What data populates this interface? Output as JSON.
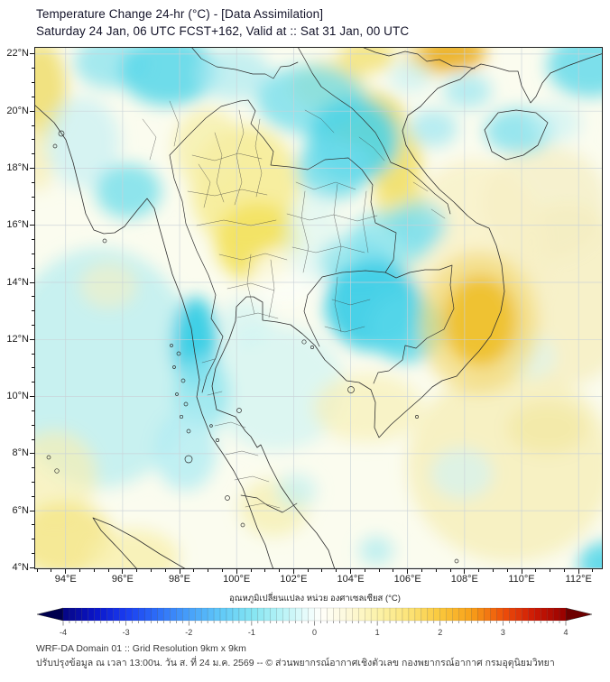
{
  "header": {
    "title_line1": "Temperature Change 24-hr (°C) - [Data Assimilation]",
    "title_line2": "Saturday 24 Jan, 06 UTC FCST+162, Valid at :: Sat 31 Jan, 00 UTC"
  },
  "map": {
    "extent": {
      "lon_min": 93,
      "lon_max": 113,
      "lat_min": 4,
      "lat_max": 22
    },
    "lon_ticks": [
      {
        "v": 94,
        "label": "94°E"
      },
      {
        "v": 96,
        "label": "96°E"
      },
      {
        "v": 98,
        "label": "98°E"
      },
      {
        "v": 100,
        "label": "100°E"
      },
      {
        "v": 102,
        "label": "102°E"
      },
      {
        "v": 104,
        "label": "104°E"
      },
      {
        "v": 106,
        "label": "106°E"
      },
      {
        "v": 108,
        "label": "108°E"
      },
      {
        "v": 110,
        "label": "110°E"
      },
      {
        "v": 112,
        "label": "112°E"
      }
    ],
    "lat_ticks": [
      {
        "v": 22,
        "label": "22°N"
      },
      {
        "v": 20,
        "label": "20°N"
      },
      {
        "v": 18,
        "label": "18°N"
      },
      {
        "v": 16,
        "label": "16°N"
      },
      {
        "v": 14,
        "label": "14°N"
      },
      {
        "v": 12,
        "label": "12°N"
      },
      {
        "v": 10,
        "label": "10°N"
      },
      {
        "v": 8,
        "label": "8°N"
      },
      {
        "v": 6,
        "label": "6°N"
      },
      {
        "v": 4,
        "label": "4°N"
      }
    ],
    "field_blobs": [
      {
        "lon": 95.2,
        "lat": 11.0,
        "rx": 3.4,
        "ry": 4.2,
        "color": "#c2eff0",
        "opacity": 0.9
      },
      {
        "lon": 101.4,
        "lat": 10.3,
        "rx": 2.4,
        "ry": 2.2,
        "color": "#d6f4f1",
        "opacity": 0.85
      },
      {
        "lon": 109.6,
        "lat": 7.6,
        "rx": 3.6,
        "ry": 3.4,
        "color": "#f6efbe",
        "opacity": 0.9
      },
      {
        "lon": 111.6,
        "lat": 13.6,
        "rx": 2.4,
        "ry": 3.2,
        "color": "#f6efc2",
        "opacity": 0.85
      },
      {
        "lon": 110.8,
        "lat": 16.8,
        "rx": 2.2,
        "ry": 2.0,
        "color": "#f4ecc0",
        "opacity": 0.7
      },
      {
        "lon": 108.3,
        "lat": 14.9,
        "rx": 2.6,
        "ry": 3.4,
        "color": "#f7f0c6",
        "opacity": 0.8
      },
      {
        "lon": 93.6,
        "lat": 7.2,
        "rx": 1.5,
        "ry": 1.6,
        "color": "#f6efb4",
        "opacity": 0.7
      },
      {
        "lon": 95.5,
        "lat": 13.9,
        "rx": 1.0,
        "ry": 0.8,
        "color": "#f7f0c0",
        "opacity": 0.6
      },
      {
        "lon": 93.15,
        "lat": 20.7,
        "rx": 0.9,
        "ry": 1.7,
        "color": "#f0e07a",
        "opacity": 0.95
      },
      {
        "lon": 93.05,
        "lat": 18.4,
        "rx": 0.55,
        "ry": 1.2,
        "color": "#f6ecb0",
        "opacity": 0.7
      },
      {
        "lon": 100.3,
        "lat": 17.3,
        "rx": 1.9,
        "ry": 2.2,
        "color": "#f6ec96",
        "opacity": 0.9
      },
      {
        "lon": 99.0,
        "lat": 18.7,
        "rx": 1.2,
        "ry": 1.4,
        "color": "#f6eda6",
        "opacity": 0.75
      },
      {
        "lon": 100.75,
        "lat": 15.4,
        "rx": 1.5,
        "ry": 1.4,
        "color": "#f2e363",
        "opacity": 0.95
      },
      {
        "lon": 103.2,
        "lat": 20.9,
        "rx": 1.3,
        "ry": 0.85,
        "color": "#f2e070",
        "opacity": 0.85
      },
      {
        "lon": 104.4,
        "lat": 19.7,
        "rx": 1.5,
        "ry": 1.0,
        "color": "#ecd84e",
        "opacity": 0.95
      },
      {
        "lon": 105.55,
        "lat": 18.2,
        "rx": 0.95,
        "ry": 1.3,
        "color": "#f0dd62",
        "opacity": 0.85
      },
      {
        "lon": 105.7,
        "lat": 16.9,
        "rx": 0.85,
        "ry": 1.2,
        "color": "#f2e274",
        "opacity": 0.8
      },
      {
        "lon": 104.6,
        "lat": 21.95,
        "rx": 1.0,
        "ry": 0.6,
        "color": "#f2e070",
        "opacity": 0.8
      },
      {
        "lon": 106.85,
        "lat": 21.85,
        "rx": 0.9,
        "ry": 0.6,
        "color": "#f0cc4a",
        "opacity": 0.8
      },
      {
        "lon": 107.6,
        "lat": 22.05,
        "rx": 1.15,
        "ry": 0.65,
        "color": "#ecb32a",
        "opacity": 0.95
      },
      {
        "lon": 93.95,
        "lat": 5.0,
        "rx": 1.7,
        "ry": 1.3,
        "color": "#f4e78c",
        "opacity": 0.9
      },
      {
        "lon": 96.4,
        "lat": 4.35,
        "rx": 1.6,
        "ry": 1.0,
        "color": "#f7efad",
        "opacity": 0.8
      },
      {
        "lon": 104.6,
        "lat": 9.6,
        "rx": 1.9,
        "ry": 1.2,
        "color": "#f7f0ba",
        "opacity": 0.75
      },
      {
        "lon": 101.3,
        "lat": 6.1,
        "rx": 1.2,
        "ry": 1.0,
        "color": "#f5eca6",
        "opacity": 0.65
      },
      {
        "lon": 110.9,
        "lat": 8.9,
        "rx": 1.4,
        "ry": 0.9,
        "color": "#f2e8a0",
        "opacity": 0.7
      },
      {
        "lon": 101.7,
        "lat": 14.2,
        "rx": 1.2,
        "ry": 1.0,
        "color": "#fdfef8",
        "opacity": 0.8
      },
      {
        "lon": 94.6,
        "lat": 18.9,
        "rx": 1.3,
        "ry": 1.6,
        "color": "#c6f0f3",
        "opacity": 0.7
      },
      {
        "lon": 95.6,
        "lat": 21.7,
        "rx": 1.3,
        "ry": 0.9,
        "color": "#8fe4ee",
        "opacity": 0.8
      },
      {
        "lon": 97.6,
        "lat": 21.4,
        "rx": 1.7,
        "ry": 1.2,
        "color": "#5ed8e9",
        "opacity": 0.9
      },
      {
        "lon": 99.9,
        "lat": 21.3,
        "rx": 1.3,
        "ry": 0.9,
        "color": "#ace9f1",
        "opacity": 0.7
      },
      {
        "lon": 102.6,
        "lat": 20.4,
        "rx": 1.9,
        "ry": 1.2,
        "color": "#7edfec",
        "opacity": 0.85
      },
      {
        "lon": 104.1,
        "lat": 19.0,
        "rx": 1.6,
        "ry": 1.5,
        "color": "#50d4e7",
        "opacity": 0.9
      },
      {
        "lon": 103.4,
        "lat": 18.0,
        "rx": 1.3,
        "ry": 1.1,
        "color": "#6cdbea",
        "opacity": 0.8
      },
      {
        "lon": 102.7,
        "lat": 15.6,
        "rx": 1.0,
        "ry": 1.6,
        "color": "#d9f5f2",
        "opacity": 0.6
      },
      {
        "lon": 105.4,
        "lat": 15.5,
        "rx": 1.5,
        "ry": 1.0,
        "color": "#8ae3ee",
        "opacity": 0.8
      },
      {
        "lon": 104.2,
        "lat": 14.7,
        "rx": 1.3,
        "ry": 0.9,
        "color": "#7edfec",
        "opacity": 0.7
      },
      {
        "lon": 104.8,
        "lat": 13.2,
        "rx": 1.7,
        "ry": 1.6,
        "color": "#3ecfe6",
        "opacity": 0.95
      },
      {
        "lon": 105.95,
        "lat": 12.4,
        "rx": 1.3,
        "ry": 1.2,
        "color": "#55d6e9",
        "opacity": 0.85
      },
      {
        "lon": 96.2,
        "lat": 17.2,
        "rx": 1.15,
        "ry": 0.95,
        "color": "#79dfeb",
        "opacity": 0.85
      },
      {
        "lon": 98.55,
        "lat": 11.9,
        "rx": 0.8,
        "ry": 1.6,
        "color": "#35cde5",
        "opacity": 0.95
      },
      {
        "lon": 98.8,
        "lat": 10.1,
        "rx": 0.95,
        "ry": 1.3,
        "color": "#8fe5ef",
        "opacity": 0.8
      },
      {
        "lon": 98.2,
        "lat": 8.1,
        "rx": 1.1,
        "ry": 1.4,
        "color": "#b2ecf2",
        "opacity": 0.8
      },
      {
        "lon": 100.3,
        "lat": 12.6,
        "rx": 0.9,
        "ry": 0.8,
        "color": "#cdf2f3",
        "opacity": 0.65
      },
      {
        "lon": 112.4,
        "lat": 21.6,
        "rx": 1.5,
        "ry": 1.1,
        "color": "#6fdcea",
        "opacity": 0.9
      },
      {
        "lon": 109.9,
        "lat": 19.3,
        "rx": 1.2,
        "ry": 0.8,
        "color": "#86e2ed",
        "opacity": 0.85
      },
      {
        "lon": 106.9,
        "lat": 19.4,
        "rx": 0.85,
        "ry": 0.65,
        "color": "#a8e9f1",
        "opacity": 0.8
      },
      {
        "lon": 106.1,
        "lat": 21.2,
        "rx": 0.75,
        "ry": 0.55,
        "color": "#c8f1f4",
        "opacity": 0.7
      },
      {
        "lon": 108.1,
        "lat": 20.7,
        "rx": 0.85,
        "ry": 0.6,
        "color": "#9fe7f0",
        "opacity": 0.75
      },
      {
        "lon": 106.35,
        "lat": 16.0,
        "rx": 1.0,
        "ry": 0.85,
        "color": "#7edfec",
        "opacity": 0.75
      },
      {
        "lon": 102.1,
        "lat": 6.7,
        "rx": 0.7,
        "ry": 0.6,
        "color": "#c2eff1",
        "opacity": 0.7
      },
      {
        "lon": 104.9,
        "lat": 4.6,
        "rx": 0.6,
        "ry": 0.5,
        "color": "#a8e9f0",
        "opacity": 0.7
      },
      {
        "lon": 107.9,
        "lat": 7.3,
        "rx": 1.1,
        "ry": 0.9,
        "color": "#d4f4f2",
        "opacity": 0.7
      },
      {
        "lon": 110.3,
        "lat": 11.4,
        "rx": 0.9,
        "ry": 0.8,
        "color": "#d8f5f3",
        "opacity": 0.6
      },
      {
        "lon": 111.2,
        "lat": 19.6,
        "rx": 0.9,
        "ry": 0.7,
        "color": "#c8f1f3",
        "opacity": 0.6
      },
      {
        "lon": 112.9,
        "lat": 4.15,
        "rx": 0.9,
        "ry": 0.75,
        "color": "#55d6e9",
        "opacity": 0.9
      },
      {
        "lon": 108.5,
        "lat": 12.6,
        "rx": 2.1,
        "ry": 2.5,
        "color": "#f2da78",
        "opacity": 0.7
      },
      {
        "lon": 108.55,
        "lat": 12.65,
        "rx": 1.3,
        "ry": 1.6,
        "color": "#eec02d",
        "opacity": 0.95
      }
    ]
  },
  "colorbar": {
    "label": "อุณหภูมิเปลี่ยนแปลง หน่วย องศาเซลเซียส (°C)",
    "ticks": [
      -4,
      -3,
      -2,
      -1,
      0,
      1,
      2,
      3,
      4
    ],
    "range": [
      -4,
      4
    ],
    "step": 0.1,
    "arrow_left_color": "#00004e",
    "arrow_right_color": "#6e0000",
    "stops": [
      {
        "v": -4.0,
        "c": [
          6,
          6,
          130
        ]
      },
      {
        "v": -3.5,
        "c": [
          10,
          20,
          200
        ]
      },
      {
        "v": -3.0,
        "c": [
          25,
          60,
          240
        ]
      },
      {
        "v": -2.5,
        "c": [
          45,
          110,
          248
        ]
      },
      {
        "v": -2.0,
        "c": [
          70,
          160,
          250
        ]
      },
      {
        "v": -1.5,
        "c": [
          95,
          200,
          248
        ]
      },
      {
        "v": -1.0,
        "c": [
          130,
          228,
          242
        ]
      },
      {
        "v": -0.5,
        "c": [
          185,
          243,
          246
        ]
      },
      {
        "v": -0.1,
        "c": [
          235,
          252,
          252
        ]
      },
      {
        "v": 0.1,
        "c": [
          255,
          255,
          250
        ]
      },
      {
        "v": 0.5,
        "c": [
          253,
          249,
          220
        ]
      },
      {
        "v": 1.0,
        "c": [
          252,
          242,
          170
        ]
      },
      {
        "v": 1.5,
        "c": [
          252,
          228,
          120
        ]
      },
      {
        "v": 2.0,
        "c": [
          250,
          200,
          60
        ]
      },
      {
        "v": 2.5,
        "c": [
          248,
          160,
          25
        ]
      },
      {
        "v": 3.0,
        "c": [
          238,
          80,
          10
        ]
      },
      {
        "v": 3.5,
        "c": [
          205,
          25,
          5
        ]
      },
      {
        "v": 4.0,
        "c": [
          150,
          0,
          0
        ]
      }
    ]
  },
  "footer": {
    "line1": "WRF-DA Domain 01 :: Grid Resolution 9km x 9km",
    "line2": "ปรับปรุงข้อมูล ณ เวลา 13:00น. วัน ส. ที่ 24 ม.ค. 2569 -- © ส่วนพยากรณ์อากาศเชิงตัวเลข กองพยากรณ์อากาศ กรมอุตุนิยมวิทยา"
  }
}
